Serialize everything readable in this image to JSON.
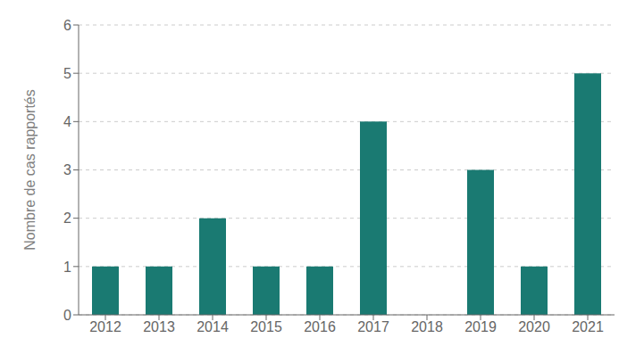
{
  "chart_data": {
    "type": "bar",
    "ylabel": "Nombre de cas rapportés",
    "categories": [
      "2012",
      "2013",
      "2014",
      "2015",
      "2016",
      "2017",
      "2018",
      "2019",
      "2020",
      "2021"
    ],
    "values": [
      1,
      1,
      2,
      1,
      1,
      4,
      0,
      3,
      1,
      5
    ],
    "color": "#1a7a72",
    "ylim": [
      0,
      6
    ],
    "yticks": [
      0,
      1,
      2,
      3,
      4,
      5,
      6
    ],
    "grid": true
  }
}
